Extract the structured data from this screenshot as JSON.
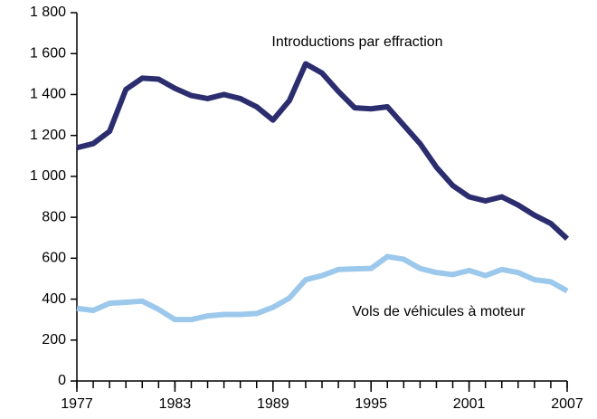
{
  "chart_data": {
    "type": "line",
    "x": [
      1977,
      1978,
      1979,
      1980,
      1981,
      1982,
      1983,
      1984,
      1985,
      1986,
      1987,
      1988,
      1989,
      1990,
      1991,
      1992,
      1993,
      1994,
      1995,
      1996,
      1997,
      1998,
      1999,
      2000,
      2001,
      2002,
      2003,
      2004,
      2005,
      2006,
      2007
    ],
    "series": [
      {
        "name": "Introductions par effraction",
        "color": "#2b2d6e",
        "values": [
          1140,
          1160,
          1220,
          1425,
          1480,
          1475,
          1430,
          1395,
          1380,
          1400,
          1380,
          1340,
          1275,
          1370,
          1550,
          1505,
          1415,
          1335,
          1330,
          1340,
          1250,
          1160,
          1045,
          955,
          900,
          880,
          900,
          860,
          810,
          770,
          695
        ]
      },
      {
        "name": "Vols de véhicules à moteur",
        "color": "#9cc8ec",
        "values": [
          355,
          345,
          380,
          385,
          390,
          350,
          300,
          300,
          318,
          325,
          325,
          330,
          360,
          405,
          495,
          515,
          545,
          548,
          550,
          608,
          595,
          550,
          530,
          520,
          540,
          515,
          545,
          530,
          495,
          485,
          440
        ]
      }
    ],
    "xlim": [
      1977,
      2007
    ],
    "xticks": [
      1977,
      1983,
      1989,
      1995,
      2001,
      2007
    ],
    "ylim": [
      0,
      1800
    ],
    "yticks": [
      0,
      200,
      400,
      600,
      800,
      {
        "value": 1000,
        "label": "1 000"
      },
      {
        "value": 1200,
        "label": "1 200"
      },
      {
        "value": 1400,
        "label": "1 400"
      },
      {
        "value": 1600,
        "label": "1 600"
      },
      {
        "value": 1800,
        "label": "1 800"
      }
    ],
    "grid": false
  }
}
